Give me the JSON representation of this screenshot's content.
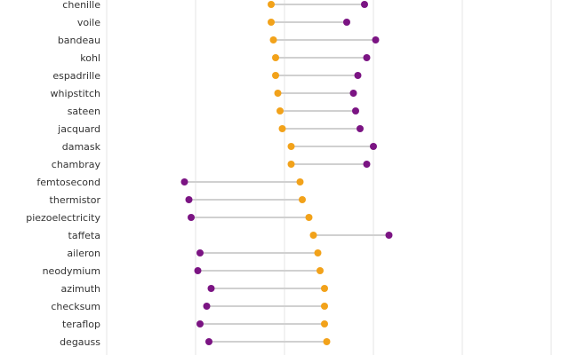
{
  "chart_data": {
    "type": "dumbbell",
    "title": "",
    "xlabel": "",
    "ylabel": "",
    "xlim": [
      -2,
      8
    ],
    "x_grid": [
      -2,
      0,
      2,
      4,
      6,
      8
    ],
    "grid": true,
    "legend": "none",
    "series": [
      {
        "name": "orange",
        "color": "#F2A21A"
      },
      {
        "name": "purple",
        "color": "#7B1483"
      }
    ],
    "categories": [
      "chenille",
      "voile",
      "bandeau",
      "kohl",
      "espadrille",
      "whipstitch",
      "sateen",
      "jacquard",
      "damask",
      "chambray",
      "femtosecond",
      "thermistor",
      "piezoelectricity",
      "taffeta",
      "aileron",
      "neodymium",
      "azimuth",
      "checksum",
      "teraflop",
      "degauss"
    ],
    "orange": [
      1.7,
      1.7,
      1.75,
      1.8,
      1.8,
      1.85,
      1.9,
      1.95,
      2.15,
      2.15,
      2.35,
      2.4,
      2.55,
      2.65,
      2.75,
      2.8,
      2.9,
      2.9,
      2.9,
      2.95
    ],
    "purple": [
      3.8,
      3.4,
      4.05,
      3.85,
      3.65,
      3.55,
      3.6,
      3.7,
      4.0,
      3.85,
      -0.25,
      -0.15,
      -0.1,
      4.35,
      0.1,
      0.05,
      0.35,
      0.25,
      0.1,
      0.3
    ]
  }
}
